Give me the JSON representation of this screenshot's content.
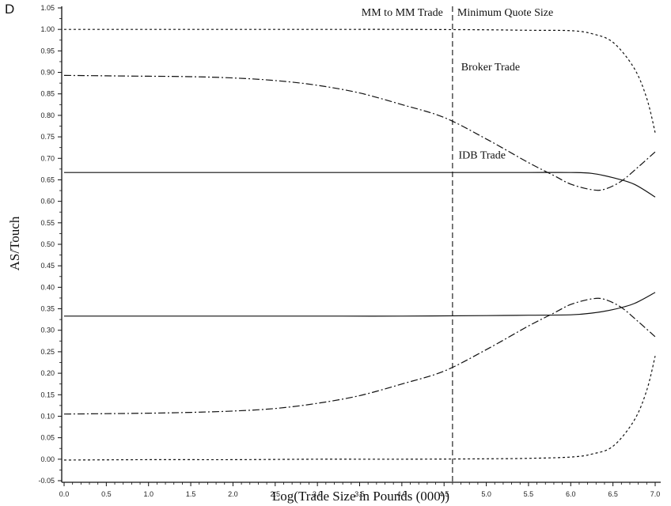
{
  "panel_label": "D",
  "chart_data": {
    "type": "line",
    "title": "",
    "xlabel": "Log(Trade Size in Pounds (000))",
    "ylabel": "AS/Touch",
    "xlim": [
      0.0,
      7.0
    ],
    "ylim": [
      -0.05,
      1.05
    ],
    "x_ticks": [
      0.0,
      0.5,
      1.0,
      1.5,
      2.0,
      2.5,
      3.0,
      3.5,
      4.0,
      4.5,
      5.0,
      5.5,
      6.0,
      6.5,
      7.0
    ],
    "x_tick_labels": [
      "0.0",
      "0.5",
      "1.0",
      "1.5",
      "2.0",
      "2.5",
      "3.0",
      "3.5",
      "4.0",
      "4.5",
      "5.0",
      "5.5",
      "6.0",
      "6.5",
      "7.0"
    ],
    "y_ticks": [
      -0.05,
      0.0,
      0.05,
      0.1,
      0.15,
      0.2,
      0.25,
      0.3,
      0.35,
      0.4,
      0.45,
      0.5,
      0.55,
      0.6,
      0.65,
      0.7,
      0.75,
      0.8,
      0.85,
      0.9,
      0.95,
      1.0,
      1.05
    ],
    "y_tick_labels": [
      "-0.05",
      "0.00",
      "0.05",
      "0.10",
      "0.15",
      "0.20",
      "0.25",
      "0.30",
      "0.35",
      "0.40",
      "0.45",
      "0.50",
      "0.55",
      "0.60",
      "0.65",
      "0.70",
      "0.75",
      "0.80",
      "0.85",
      "0.90",
      "0.95",
      "1.00",
      "1.05"
    ],
    "grid": false,
    "legend": "none",
    "vertical_line": {
      "x": 4.6,
      "style": "dashed",
      "left_label": "MM to MM Trade",
      "right_label": "Minimum Quote Size"
    },
    "series": [
      {
        "name": "IDB Trade",
        "style": "solid",
        "x": [
          0.0,
          1.0,
          2.0,
          3.0,
          4.0,
          5.0,
          5.5,
          6.0,
          6.25,
          6.5,
          6.75,
          7.0
        ],
        "y": [
          0.667,
          0.667,
          0.667,
          0.667,
          0.667,
          0.667,
          0.667,
          0.667,
          0.665,
          0.655,
          0.64,
          0.61
        ]
      },
      {
        "style": "solid",
        "x": [
          0.0,
          1.0,
          2.0,
          3.0,
          4.0,
          5.0,
          5.5,
          6.0,
          6.25,
          6.5,
          6.75,
          7.0
        ],
        "y": [
          0.333,
          0.333,
          0.333,
          0.333,
          0.333,
          0.334,
          0.335,
          0.336,
          0.34,
          0.348,
          0.362,
          0.388
        ]
      },
      {
        "name": "Broker Trade",
        "style": "dash-dot",
        "x": [
          0.0,
          0.5,
          1.0,
          1.5,
          2.0,
          2.5,
          3.0,
          3.5,
          4.0,
          4.5,
          5.0,
          5.5,
          5.8,
          6.0,
          6.25,
          6.4,
          6.6,
          6.8,
          7.0
        ],
        "y": [
          0.893,
          0.892,
          0.891,
          0.89,
          0.887,
          0.881,
          0.87,
          0.852,
          0.825,
          0.795,
          0.745,
          0.69,
          0.66,
          0.64,
          0.627,
          0.628,
          0.647,
          0.68,
          0.715
        ]
      },
      {
        "style": "dash-dot",
        "x": [
          0.0,
          0.5,
          1.0,
          1.5,
          2.0,
          2.5,
          3.0,
          3.5,
          4.0,
          4.5,
          5.0,
          5.5,
          5.8,
          6.0,
          6.25,
          6.4,
          6.6,
          6.8,
          7.0
        ],
        "y": [
          0.105,
          0.106,
          0.107,
          0.109,
          0.112,
          0.118,
          0.13,
          0.148,
          0.175,
          0.205,
          0.255,
          0.31,
          0.34,
          0.36,
          0.373,
          0.372,
          0.353,
          0.32,
          0.285
        ]
      },
      {
        "style": "dotted",
        "x": [
          0.0,
          1.0,
          2.0,
          3.0,
          4.0,
          5.0,
          5.5,
          6.0,
          6.25,
          6.5,
          6.75,
          6.9,
          7.0
        ],
        "y": [
          1.0,
          1.0,
          1.0,
          1.0,
          1.0,
          0.999,
          0.998,
          0.997,
          0.99,
          0.97,
          0.91,
          0.84,
          0.76
        ]
      },
      {
        "style": "dotted",
        "x": [
          0.0,
          1.0,
          2.0,
          3.0,
          4.0,
          5.0,
          5.5,
          6.0,
          6.25,
          6.5,
          6.75,
          6.9,
          7.0
        ],
        "y": [
          -0.002,
          -0.001,
          -0.001,
          0.0,
          0.0,
          0.001,
          0.002,
          0.005,
          0.012,
          0.03,
          0.09,
          0.16,
          0.24
        ]
      }
    ],
    "annotations": [
      {
        "text": "Broker Trade",
        "x": 5.05,
        "y": 0.905
      },
      {
        "text": "IDB Trade",
        "x": 4.95,
        "y": 0.7
      }
    ]
  }
}
